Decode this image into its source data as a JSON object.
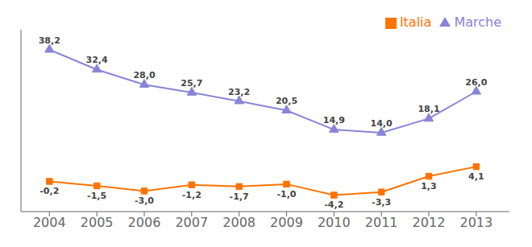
{
  "chart_data": {
    "type": "line",
    "x": [
      2004,
      2005,
      2006,
      2007,
      2008,
      2009,
      2010,
      2011,
      2012,
      2013
    ],
    "series": [
      {
        "name": "Marche",
        "values": [
          38.2,
          32.4,
          28.0,
          25.7,
          23.2,
          20.5,
          14.9,
          14.0,
          18.1,
          26.0
        ],
        "value_labels": [
          "38,2",
          "32,4",
          "28,0",
          "25,7",
          "23,2",
          "20,5",
          "14,9",
          "14,0",
          "18,1",
          "26,0"
        ],
        "marker": "triangle"
      },
      {
        "name": "Italia",
        "values": [
          -0.2,
          -1.5,
          -3.0,
          -1.2,
          -1.7,
          -1.0,
          -4.2,
          -3.3,
          1.3,
          4.1
        ],
        "value_labels": [
          "-0,2",
          "-1,5",
          "-3,0",
          "-1,2",
          "-1,7",
          "-1,0",
          "-4,2",
          "-3,3",
          "1,3",
          "4,1"
        ],
        "marker": "square"
      }
    ],
    "xlim": [
      2003.4,
      2013.7
    ],
    "xticks": [
      2004,
      2005,
      2006,
      2007,
      2008,
      2009,
      2010,
      2011,
      2012,
      2013
    ],
    "ylim": [
      -9,
      44
    ],
    "data_labels": true,
    "tick_labels": "x",
    "legend": "upper right",
    "grid": false
  }
}
